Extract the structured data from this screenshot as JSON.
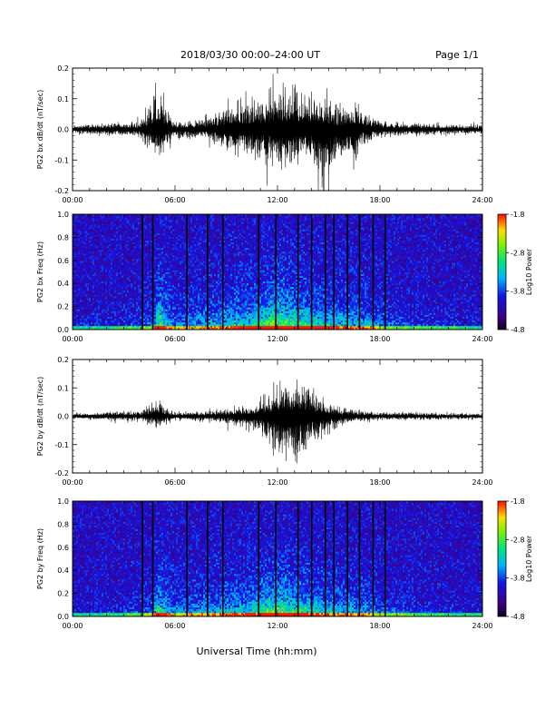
{
  "header": {
    "title": "2018/03/30  00:00–24:00 UT",
    "page_label": "Page 1/1"
  },
  "x_axis": {
    "label": "Universal Time (hh:mm)",
    "ticks": [
      "00:00",
      "06:00",
      "12:00",
      "18:00",
      "24:00"
    ]
  },
  "colorbar": {
    "label": "Log10 Power",
    "ticks": [
      "-1.8",
      "-2.8",
      "-3.8",
      "-4.8"
    ]
  },
  "chart_data": [
    {
      "type": "line",
      "ylabel": "PG2 bx dB/dt (nT/sec)",
      "xlim": [
        0,
        24
      ],
      "ylim": [
        -0.2,
        0.2
      ],
      "yticks": [
        "0.2",
        "0.1",
        "0.0",
        "-0.1",
        "-0.2"
      ],
      "envelope": {
        "x": [
          0,
          2,
          4,
          4.5,
          5.0,
          5.5,
          6,
          7,
          8,
          9,
          10,
          11,
          12,
          13,
          14,
          14.8,
          15.5,
          16.5,
          17,
          18,
          20,
          22,
          24
        ],
        "y_max": [
          0.01,
          0.015,
          0.02,
          0.06,
          0.1,
          0.05,
          0.02,
          0.02,
          0.04,
          0.06,
          0.07,
          0.08,
          0.1,
          0.11,
          0.09,
          0.08,
          0.05,
          0.07,
          0.04,
          0.02,
          0.015,
          0.012,
          0.01
        ],
        "y_min": [
          -0.01,
          -0.015,
          -0.02,
          -0.05,
          -0.08,
          -0.04,
          -0.02,
          -0.02,
          -0.03,
          -0.05,
          -0.06,
          -0.07,
          -0.09,
          -0.1,
          -0.08,
          -0.2,
          -0.06,
          -0.09,
          -0.04,
          -0.02,
          -0.015,
          -0.012,
          -0.01
        ]
      }
    },
    {
      "type": "heatmap",
      "ylabel": "PG2 bx Freq (Hz)",
      "xlim": [
        0,
        24
      ],
      "ylim": [
        0,
        1.0
      ],
      "yticks": [
        "1.0",
        "0.8",
        "0.6",
        "0.4",
        "0.2",
        "0.0"
      ],
      "zlim": [
        -4.8,
        -1.8
      ],
      "data_gaps_hours": [
        4.1,
        4.7,
        6.7,
        7.9,
        8.8,
        10.9,
        11.9,
        13.2,
        14.0,
        14.8,
        15.3,
        16.1,
        16.8,
        17.6,
        18.3
      ],
      "activity": {
        "x": [
          0,
          3,
          4.7,
          5,
          6,
          7,
          8,
          10,
          11,
          12,
          13,
          14,
          15,
          16,
          17,
          18,
          20,
          24
        ],
        "level": [
          0.1,
          0.15,
          0.3,
          0.8,
          0.35,
          0.4,
          0.45,
          0.6,
          0.7,
          0.85,
          0.75,
          0.65,
          0.55,
          0.5,
          0.5,
          0.35,
          0.2,
          0.1
        ]
      }
    },
    {
      "type": "line",
      "ylabel": "PG2 by dB/dt (nT/sec)",
      "xlim": [
        0,
        24
      ],
      "ylim": [
        -0.2,
        0.2
      ],
      "yticks": [
        "0.2",
        "0.1",
        "0.0",
        "-0.1",
        "-0.2"
      ],
      "envelope": {
        "x": [
          0,
          2,
          2.5,
          4,
          5.0,
          5.5,
          6,
          8,
          10,
          11,
          12,
          13,
          14,
          15,
          16,
          18,
          20,
          24
        ],
        "y_max": [
          0.008,
          0.01,
          0.015,
          0.01,
          0.05,
          0.02,
          0.01,
          0.015,
          0.025,
          0.04,
          0.08,
          0.1,
          0.07,
          0.03,
          0.02,
          0.01,
          0.01,
          0.008
        ],
        "y_min": [
          -0.008,
          -0.01,
          -0.015,
          -0.01,
          -0.03,
          -0.02,
          -0.01,
          -0.015,
          -0.025,
          -0.05,
          -0.1,
          -0.12,
          -0.08,
          -0.04,
          -0.02,
          -0.01,
          -0.01,
          -0.008
        ]
      }
    },
    {
      "type": "heatmap",
      "ylabel": "PG2 by Freq (Hz)",
      "xlim": [
        0,
        24
      ],
      "ylim": [
        0,
        1.0
      ],
      "yticks": [
        "1.0",
        "0.8",
        "0.6",
        "0.4",
        "0.2",
        "0.0"
      ],
      "zlim": [
        -4.8,
        -1.8
      ],
      "data_gaps_hours": [
        4.1,
        4.7,
        6.7,
        7.9,
        8.8,
        10.9,
        11.9,
        13.2,
        14.0,
        14.8,
        15.3,
        16.1,
        16.8,
        17.6,
        18.3
      ],
      "activity": {
        "x": [
          0,
          3,
          4.7,
          5,
          6,
          7,
          8,
          10,
          11,
          12,
          13,
          14,
          15,
          16,
          17,
          18,
          20,
          24
        ],
        "level": [
          0.1,
          0.15,
          0.3,
          0.75,
          0.35,
          0.4,
          0.45,
          0.55,
          0.65,
          0.8,
          0.7,
          0.6,
          0.5,
          0.45,
          0.45,
          0.3,
          0.2,
          0.1
        ]
      }
    }
  ]
}
